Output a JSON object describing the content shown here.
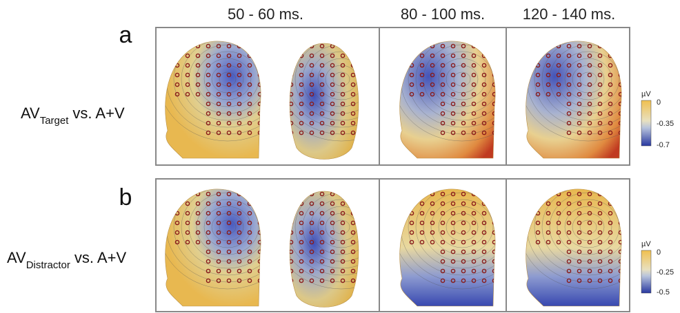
{
  "header": {
    "time_windows": [
      "50 - 60 ms.",
      "80 - 100 ms.",
      "120 - 140 ms."
    ]
  },
  "rows": [
    {
      "panel": "a",
      "label": {
        "main": "AV",
        "subscript": "Target",
        "suffix": "vs.  A+V"
      },
      "colorbar": {
        "unit": "µV",
        "ticks": [
          "0",
          "-0.35",
          "-0.7"
        ]
      }
    },
    {
      "panel": "b",
      "label": {
        "main": "AV",
        "subscript": "Distractor",
        "suffix": "vs.  A+V"
      },
      "colorbar": {
        "unit": "µV",
        "ticks": [
          "0",
          "-0.25",
          "-0.5"
        ]
      }
    }
  ]
}
